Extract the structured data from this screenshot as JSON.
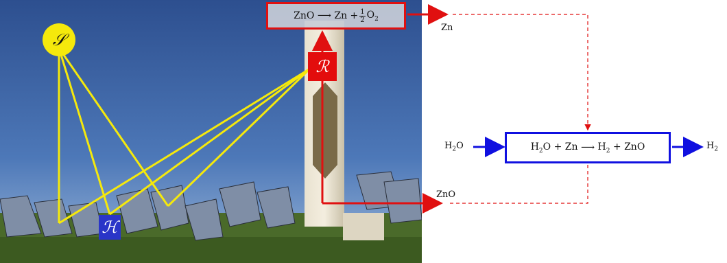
{
  "top_equation": {
    "reactant": "ZnO",
    "arrow": "⟶",
    "product": "Zn + ",
    "frac_num": "1",
    "frac_den": "2",
    "product_tail": "O",
    "product_tail_sub": "2"
  },
  "bottom_equation": {
    "r1": "H",
    "r1_sub": "2",
    "r1_tail": "O + Zn",
    "arrow": "⟶",
    "p1": "H",
    "p1_sub": "2",
    "p1_tail": " + ZnO"
  },
  "labels": {
    "zn_out": "Zn",
    "h2o_in": "H",
    "h2o_in_sub": "2",
    "h2o_in_tail": "O",
    "h2_out": "H",
    "h2_out_sub": "2",
    "zno_return": "ZnO"
  },
  "symbols": {
    "sun": "𝒮",
    "receiver": "ℛ",
    "heliostat": "ℋ"
  },
  "colors": {
    "red": "#e01010",
    "blue": "#1010e0",
    "yellow": "#f5e90c",
    "sky": "#3a64a8"
  }
}
